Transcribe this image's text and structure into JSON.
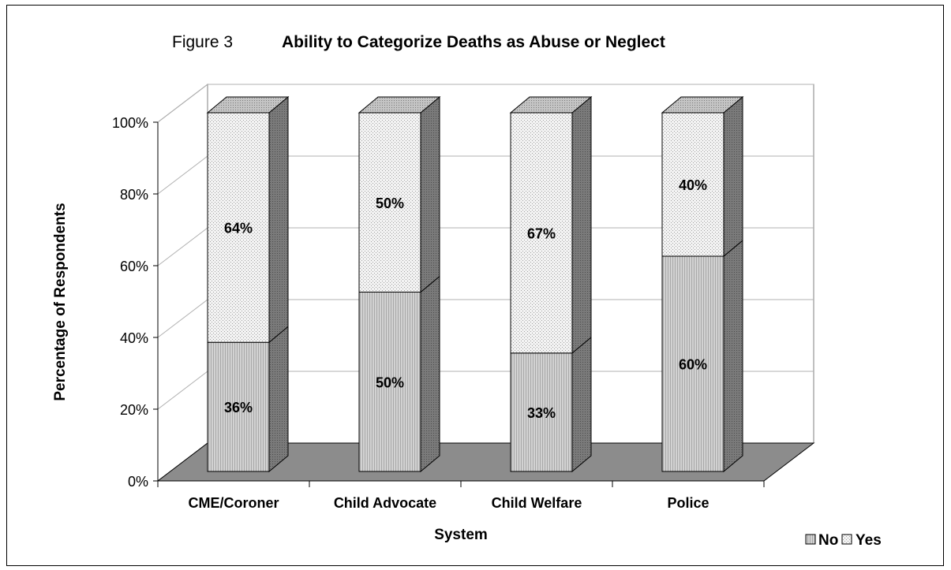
{
  "chart_data": {
    "type": "bar",
    "subtype": "stacked-3d-100",
    "figure_label": "Figure 3",
    "title": "Ability to Categorize Deaths as Abuse or Neglect",
    "xlabel": "System",
    "ylabel": "Percentage of Respondents",
    "categories": [
      "CME/Coroner",
      "Child Advocate",
      "Child Welfare",
      "Police"
    ],
    "series": [
      {
        "name": "No",
        "values": [
          36,
          50,
          33,
          60
        ],
        "labels": [
          "36%",
          "50%",
          "33%",
          "60%"
        ]
      },
      {
        "name": "Yes",
        "values": [
          64,
          50,
          67,
          40
        ],
        "labels": [
          "64%",
          "50%",
          "67%",
          "40%"
        ]
      }
    ],
    "ylim": [
      0,
      100
    ],
    "yticks": [
      0,
      20,
      40,
      60,
      80,
      100
    ],
    "ytick_labels": [
      "0%",
      "20%",
      "40%",
      "60%",
      "80%",
      "100%"
    ],
    "grid": true,
    "legend": {
      "placement": "bottom-right",
      "entries": [
        "No",
        "Yes"
      ]
    },
    "colors": {
      "floor": "#8c8c8c",
      "no_front": "#cfcfcf",
      "yes_front": "#f2f2f2",
      "side": "#6e6e6e",
      "top": "#b5b5b5"
    }
  }
}
